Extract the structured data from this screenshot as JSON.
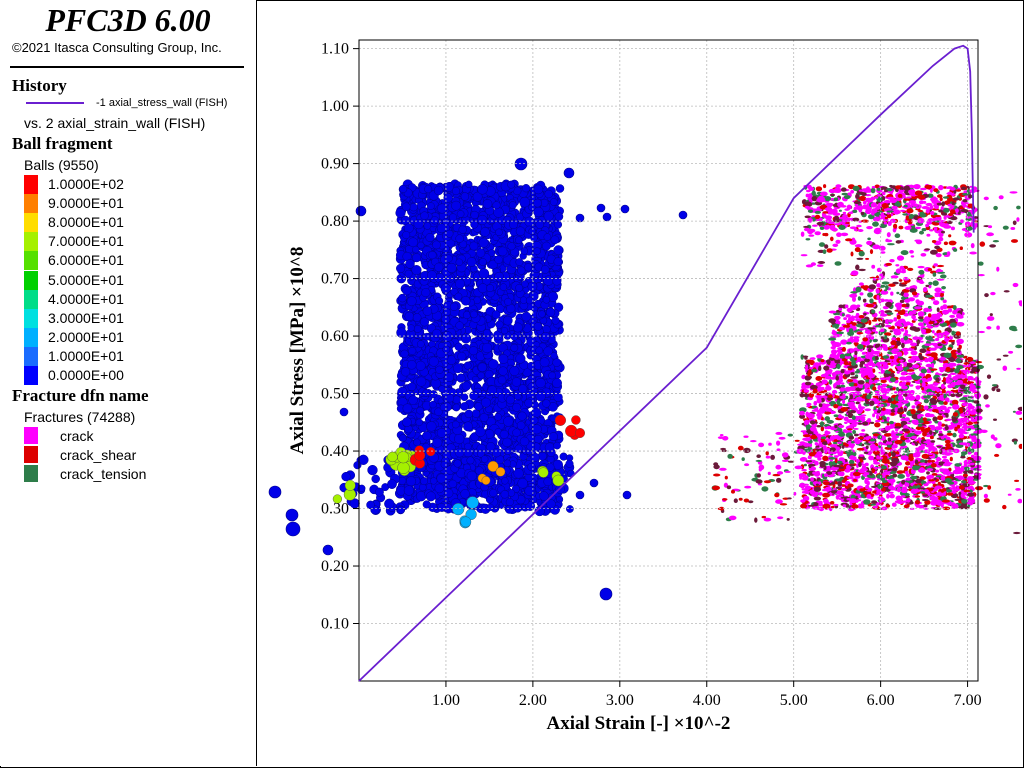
{
  "header": {
    "title": "PFC3D 6.00",
    "copyright": "©2021 Itasca Consulting Group, Inc."
  },
  "legend": {
    "history": {
      "title": "History",
      "series_label": "-1 axial_stress_wall (FISH)",
      "vs_label": "vs. 2 axial_strain_wall (FISH)",
      "line_color": "#6a1fd0"
    },
    "ball_fragment": {
      "title": "Ball fragment",
      "subtitle": "Balls (9550)",
      "entries": [
        {
          "label": "1.0000E+02",
          "color": "#ff0000"
        },
        {
          "label": "9.0000E+01",
          "color": "#ff7f00"
        },
        {
          "label": "8.0000E+01",
          "color": "#ffdd00"
        },
        {
          "label": "7.0000E+01",
          "color": "#a5f000"
        },
        {
          "label": "6.0000E+01",
          "color": "#55e000"
        },
        {
          "label": "5.0000E+01",
          "color": "#00d000"
        },
        {
          "label": "4.0000E+01",
          "color": "#00dd88"
        },
        {
          "label": "3.0000E+01",
          "color": "#00e0e0"
        },
        {
          "label": "2.0000E+01",
          "color": "#00b0ff"
        },
        {
          "label": "1.0000E+01",
          "color": "#1a6cff"
        },
        {
          "label": "0.0000E+00",
          "color": "#0000ff"
        }
      ]
    },
    "fracture": {
      "title": "Fracture dfn name",
      "subtitle": "Fractures (74288)",
      "entries": [
        {
          "label": "crack",
          "color": "#ff00ff"
        },
        {
          "label": "crack_shear",
          "color": "#dd0000"
        },
        {
          "label": "crack_tension",
          "color": "#2e7d4a"
        }
      ]
    }
  },
  "chart_data": {
    "type": "line",
    "xlabel": "Axial Strain [-] ×10^-2",
    "ylabel": "Axial Stress [MPa] ×10^8",
    "xlim": [
      0,
      7.12
    ],
    "ylim": [
      0,
      1.115
    ],
    "x_ticks": [
      "1.00",
      "2.00",
      "3.00",
      "4.00",
      "5.00",
      "6.00",
      "7.00"
    ],
    "y_ticks": [
      "0.10",
      "0.20",
      "0.30",
      "0.40",
      "0.50",
      "0.60",
      "0.70",
      "0.80",
      "0.90",
      "1.00",
      "1.10"
    ],
    "grid": true,
    "series": [
      {
        "name": "-1 axial_stress_wall (FISH)",
        "color": "#6a1fd0",
        "x": [
          0,
          1.0,
          2.0,
          3.0,
          4.0,
          5.0,
          6.0,
          6.6,
          6.85,
          6.95,
          7.0,
          7.03,
          7.05,
          7.06,
          7.07
        ],
        "y": [
          0,
          0.145,
          0.29,
          0.435,
          0.58,
          0.84,
          0.985,
          1.07,
          1.1,
          1.105,
          1.1,
          1.06,
          0.95,
          0.86,
          0.78
        ]
      }
    ]
  }
}
